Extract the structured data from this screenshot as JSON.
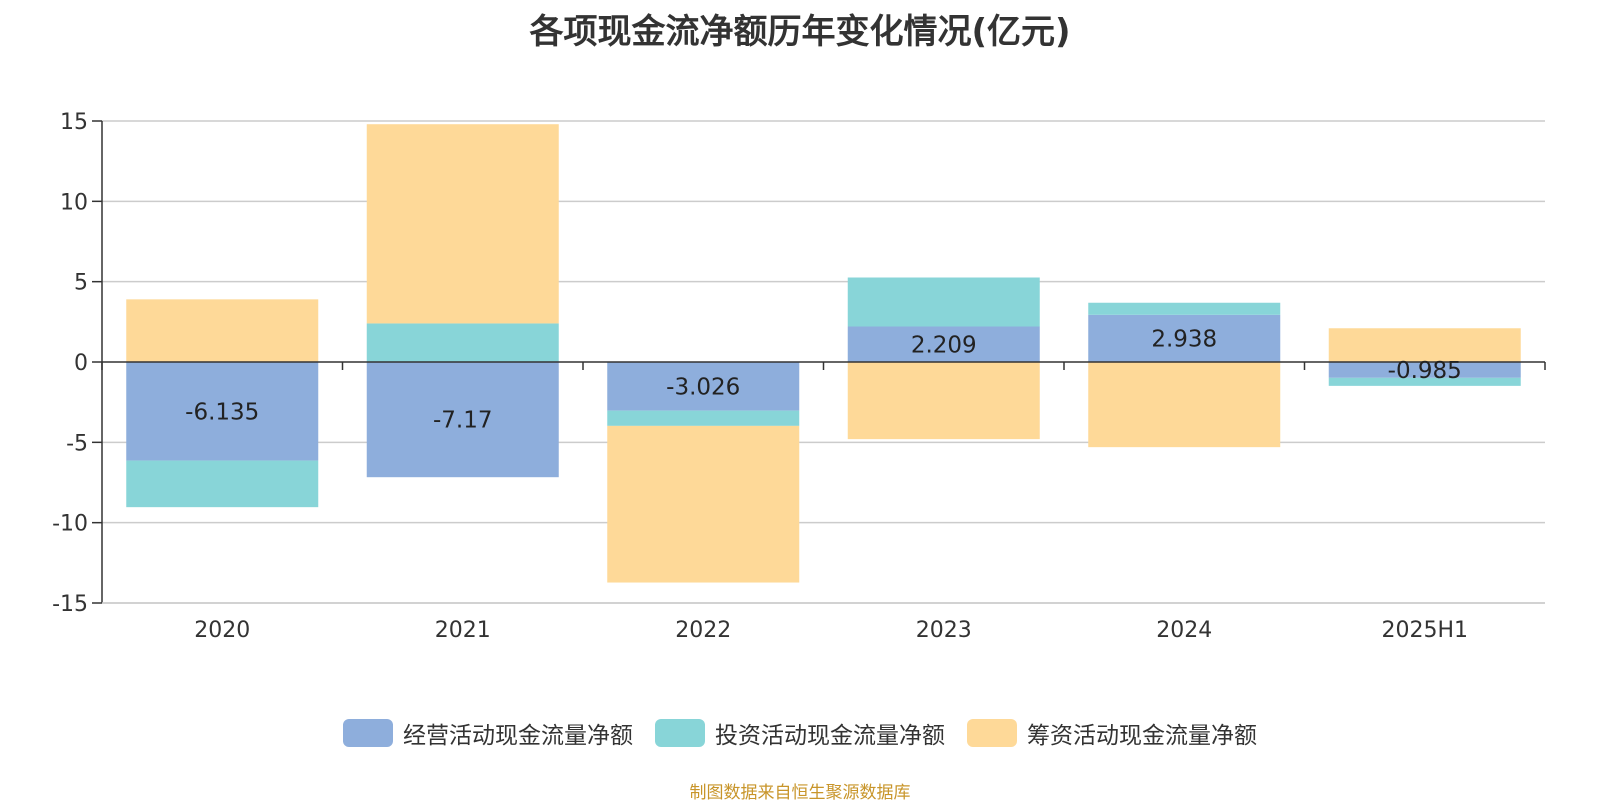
{
  "chart_data": {
    "type": "bar",
    "stacked": true,
    "title": "各项现金流净额历年变化情况(亿元)",
    "categories": [
      "2020",
      "2021",
      "2022",
      "2023",
      "2024",
      "2025H1"
    ],
    "series": [
      {
        "name": "经营活动现金流量净额",
        "color": "#8eaedc",
        "values": [
          -6.135,
          -7.17,
          -3.026,
          2.209,
          2.938,
          -0.985
        ],
        "labels": [
          "-6.135",
          "-7.17",
          "-3.026",
          "2.209",
          "2.938",
          "-0.985"
        ]
      },
      {
        "name": "投资活动现金流量净额",
        "color": "#88d5d8",
        "values": [
          -2.9,
          2.4,
          -0.95,
          3.05,
          0.75,
          -0.5
        ]
      },
      {
        "name": "筹资活动现金流量净额",
        "color": "#fed998",
        "values": [
          3.9,
          12.4,
          -9.75,
          -4.8,
          -5.3,
          2.1
        ]
      }
    ],
    "ylim": [
      -15,
      15
    ],
    "yticks": [
      15,
      10,
      5,
      0,
      -5,
      -10,
      -15
    ],
    "ytick_labels": [
      "15",
      "10",
      "5",
      "0",
      "-5",
      "-10",
      "-15"
    ],
    "grid": true,
    "legend_position": "bottom-center",
    "xlabel": "",
    "ylabel": ""
  },
  "source_note": "制图数据来自恒生聚源数据库"
}
